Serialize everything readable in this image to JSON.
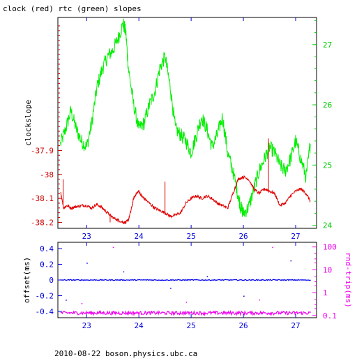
{
  "colors": {
    "clock": "#e00000",
    "rtc": "#00ee00",
    "offset": "#0000ee",
    "rtt": "#ee00ee",
    "axis_black": "#000000",
    "ylabel_red": "#cc0000",
    "ylabel_green": "#00cc00",
    "xlabel_blue": "#0000dd"
  },
  "chart_data": [
    {
      "type": "line",
      "title": "clock (red) rtc (green) slopes",
      "xlabel": "",
      "ylabel": "clockslope",
      "y2label": "",
      "xlim": [
        22.45,
        27.4
      ],
      "ylim": [
        -38.225,
        -37.345
      ],
      "y2lim": [
        23.95,
        27.45
      ],
      "x_ticks": [
        23,
        24,
        25,
        26,
        27
      ],
      "y_ticks": [
        -38.2,
        -38.1,
        -38,
        -37.9
      ],
      "y_tick_labels": [
        "-38.2",
        "-38.1",
        "-38",
        "-37.9"
      ],
      "y2_ticks": [
        24,
        25,
        26,
        27
      ],
      "y2_tick_labels": [
        "24",
        "25",
        "26",
        "27"
      ],
      "grid": false,
      "series": [
        {
          "name": "clock",
          "axis": "left",
          "x": [
            22.5,
            22.56,
            22.62,
            22.7,
            22.8,
            22.9,
            23.0,
            23.1,
            23.2,
            23.3,
            23.4,
            23.5,
            23.6,
            23.7,
            23.75,
            23.8,
            23.85,
            23.9,
            23.95,
            24.0,
            24.05,
            24.1,
            24.2,
            24.3,
            24.4,
            24.5,
            24.6,
            24.7,
            24.8,
            24.9,
            25.0,
            25.1,
            25.2,
            25.3,
            25.4,
            25.5,
            25.6,
            25.7,
            25.8,
            25.9,
            26.0,
            26.1,
            26.2,
            26.3,
            26.4,
            26.5,
            26.6,
            26.7,
            26.8,
            26.9,
            27.0,
            27.1,
            27.2,
            27.28
          ],
          "values": [
            -38.07,
            -38.14,
            -38.13,
            -38.14,
            -38.135,
            -38.13,
            -38.13,
            -38.14,
            -38.125,
            -38.14,
            -38.16,
            -38.18,
            -38.19,
            -38.2,
            -38.2,
            -38.19,
            -38.15,
            -38.1,
            -38.08,
            -38.07,
            -38.09,
            -38.1,
            -38.12,
            -38.14,
            -38.15,
            -38.16,
            -38.175,
            -38.17,
            -38.16,
            -38.12,
            -38.1,
            -38.09,
            -38.1,
            -38.09,
            -38.1,
            -38.12,
            -38.13,
            -38.14,
            -38.08,
            -38.02,
            -38.01,
            -38.02,
            -38.06,
            -38.08,
            -38.06,
            -38.07,
            -38.08,
            -38.13,
            -38.12,
            -38.09,
            -38.07,
            -38.06,
            -38.08,
            -38.11
          ]
        },
        {
          "name": "rtc",
          "axis": "right",
          "x": [
            22.5,
            22.6,
            22.7,
            22.8,
            22.9,
            23.0,
            23.1,
            23.2,
            23.3,
            23.4,
            23.5,
            23.6,
            23.7,
            23.75,
            23.8,
            23.9,
            24.0,
            24.1,
            24.2,
            24.3,
            24.4,
            24.5,
            24.6,
            24.7,
            24.8,
            24.9,
            25.0,
            25.1,
            25.2,
            25.3,
            25.4,
            25.5,
            25.6,
            25.7,
            25.8,
            25.9,
            25.95,
            26.0,
            26.1,
            26.2,
            26.3,
            26.4,
            26.5,
            26.6,
            26.7,
            26.8,
            26.9,
            27.0,
            27.1,
            27.2,
            27.28
          ],
          "values": [
            25.35,
            25.6,
            25.9,
            25.6,
            25.4,
            25.3,
            25.7,
            26.3,
            26.6,
            26.8,
            26.9,
            27.1,
            27.35,
            27.2,
            26.6,
            26.0,
            25.6,
            25.7,
            26.0,
            26.2,
            26.6,
            26.8,
            26.3,
            25.6,
            25.5,
            25.4,
            25.2,
            25.5,
            25.8,
            25.6,
            25.3,
            25.5,
            25.8,
            25.2,
            24.9,
            24.5,
            24.3,
            24.2,
            24.3,
            24.6,
            24.9,
            25.1,
            25.3,
            25.2,
            25.0,
            24.9,
            25.1,
            25.4,
            25.1,
            24.8,
            25.35
          ]
        }
      ],
      "spikes": {
        "clock": [
          {
            "x": 22.55,
            "value": -38.02
          },
          {
            "x": 23.45,
            "value": -38.2
          },
          {
            "x": 23.6,
            "value": -38.2
          },
          {
            "x": 24.5,
            "value": -38.03
          },
          {
            "x": 26.48,
            "value": -37.85
          }
        ]
      }
    },
    {
      "type": "scatter",
      "title": "",
      "xlabel": "",
      "ylabel": "offset(ms)",
      "y2label": "rnd-trip(ms)",
      "xlim": [
        22.45,
        27.4
      ],
      "ylim": [
        -0.48,
        0.48
      ],
      "y_ticks": [
        0.4,
        0.2,
        0,
        -0.2,
        -0.4
      ],
      "y_tick_labels": [
        "0.4",
        "0.2",
        "0",
        "-0.2",
        "-0.4"
      ],
      "y2_scale": "log",
      "y2lim": [
        0.08,
        160
      ],
      "y2_ticks": [
        100,
        10,
        1,
        0.1
      ],
      "y2_tick_labels": [
        "100",
        "10",
        "1",
        "0.1"
      ],
      "x_ticks": [
        23,
        24,
        25,
        26,
        27
      ],
      "x_tick_labels": [
        "23",
        "24",
        "25",
        "26",
        "27"
      ],
      "grid": false,
      "series": [
        {
          "name": "offset",
          "axis": "left",
          "baseline": 0,
          "outliers": [
            {
              "x": 23.0,
              "value": 0.22
            },
            {
              "x": 23.7,
              "value": 0.11
            },
            {
              "x": 24.6,
              "value": -0.1
            },
            {
              "x": 25.3,
              "value": 0.05
            },
            {
              "x": 26.0,
              "value": -0.2
            },
            {
              "x": 26.9,
              "value": 0.25
            },
            {
              "x": 22.6,
              "value": -0.25
            }
          ]
        },
        {
          "name": "rtt",
          "axis": "right",
          "baseline": 0.13,
          "outliers": [
            {
              "x": 23.5,
              "value": 100
            },
            {
              "x": 26.55,
              "value": 100
            },
            {
              "x": 22.9,
              "value": 0.35
            },
            {
              "x": 24.9,
              "value": 0.4
            },
            {
              "x": 26.3,
              "value": 0.5
            }
          ]
        }
      ]
    }
  ],
  "footer": "2010-08-22  boson.physics.ubc.ca"
}
